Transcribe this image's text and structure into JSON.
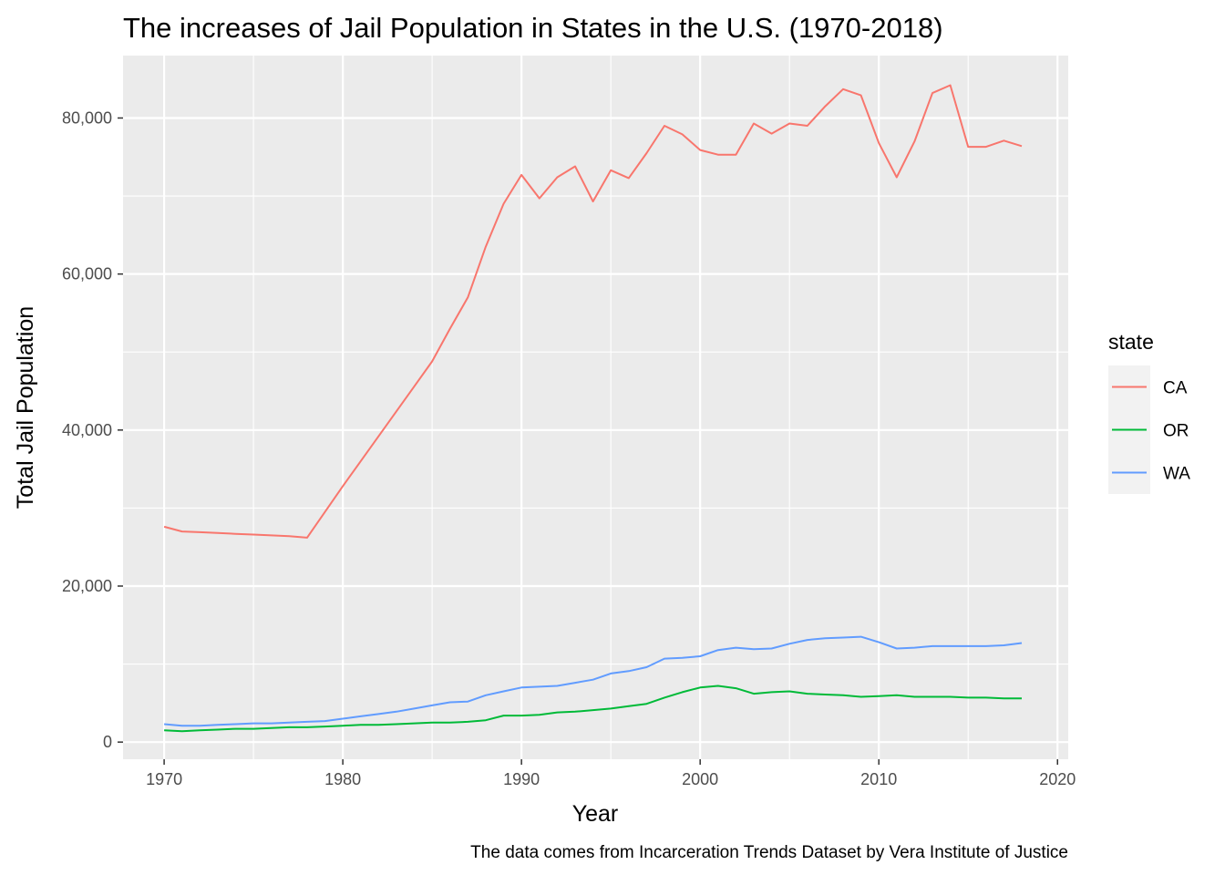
{
  "chart_data": {
    "type": "line",
    "title": "The increases of Jail Population in States in the U.S. (1970-2018)",
    "xlabel": "Year",
    "ylabel": "Total Jail Population",
    "caption": "The data comes from Incarceration Trends Dataset by Vera Institute of Justice",
    "xlim": [
      1967.7,
      2020.6
    ],
    "ylim": [
      -2200,
      88000
    ],
    "x_ticks": [
      1970,
      1980,
      1990,
      2000,
      2010,
      2020
    ],
    "x_tick_labels": [
      "1970",
      "1980",
      "1990",
      "2000",
      "2010",
      "2020"
    ],
    "y_ticks": [
      0,
      20000,
      40000,
      60000,
      80000
    ],
    "y_tick_labels": [
      "0",
      "20,000",
      "40,000",
      "60,000",
      "80,000"
    ],
    "grid": true,
    "legend": {
      "title": "state",
      "position": "right"
    },
    "x": [
      1970,
      1971,
      1972,
      1973,
      1974,
      1975,
      1976,
      1977,
      1978,
      1979,
      1980,
      1981,
      1982,
      1983,
      1984,
      1985,
      1986,
      1987,
      1988,
      1989,
      1990,
      1991,
      1992,
      1993,
      1994,
      1995,
      1996,
      1997,
      1998,
      1999,
      2000,
      2001,
      2002,
      2003,
      2004,
      2005,
      2006,
      2007,
      2008,
      2009,
      2010,
      2011,
      2012,
      2013,
      2014,
      2015,
      2016,
      2017,
      2018
    ],
    "series": [
      {
        "name": "CA",
        "color": "#F8766D",
        "values": [
          27600,
          27000,
          26900,
          26800,
          26700,
          26600,
          26500,
          26400,
          26200,
          29500,
          32800,
          36000,
          39200,
          42400,
          45600,
          48800,
          53000,
          57000,
          63500,
          69000,
          72700,
          69700,
          72400,
          73800,
          69300,
          73300,
          72300,
          75500,
          79000,
          77900,
          75900,
          75300,
          75300,
          79300,
          78000,
          79300,
          79000,
          81500,
          83700,
          82900,
          76800,
          72400,
          77000,
          83200,
          84200,
          76300,
          76300,
          77100,
          76400
        ]
      },
      {
        "name": "OR",
        "color": "#00BA38",
        "values": [
          1500,
          1400,
          1500,
          1600,
          1700,
          1700,
          1800,
          1900,
          1900,
          2000,
          2100,
          2200,
          2200,
          2300,
          2400,
          2500,
          2500,
          2600,
          2800,
          3400,
          3400,
          3500,
          3800,
          3900,
          4100,
          4300,
          4600,
          4900,
          5700,
          6400,
          7000,
          7200,
          6900,
          6200,
          6400,
          6500,
          6200,
          6100,
          6000,
          5800,
          5900,
          6000,
          5800,
          5800,
          5800,
          5700,
          5700,
          5600,
          5600
        ]
      },
      {
        "name": "WA",
        "color": "#619CFF",
        "values": [
          2300,
          2100,
          2100,
          2200,
          2300,
          2400,
          2400,
          2500,
          2600,
          2700,
          3000,
          3300,
          3600,
          3900,
          4300,
          4700,
          5100,
          5200,
          6000,
          6500,
          7000,
          7100,
          7200,
          7600,
          8000,
          8800,
          9100,
          9600,
          10700,
          10800,
          11000,
          11800,
          12100,
          11900,
          12000,
          12600,
          13100,
          13300,
          13400,
          13500,
          12800,
          12000,
          12100,
          12300,
          12300,
          12300,
          12300,
          12400,
          12700
        ]
      }
    ]
  }
}
